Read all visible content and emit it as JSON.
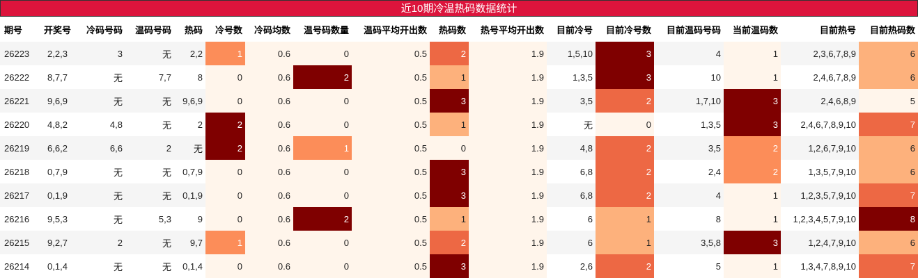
{
  "title": "近10期冷温热码数据统计",
  "table": {
    "columns": [
      "期号",
      "开奖号",
      "冷码号码",
      "温码号码",
      "热码",
      "冷号数",
      "冷码均数",
      "温号码数量",
      "温码平均开出数",
      "热码数",
      "热号平均开出数",
      "目前冷号",
      "目前冷号数",
      "目前温码号码",
      "当前温码数",
      "目前热号",
      "目前热码数"
    ],
    "heat_columns": [
      5,
      6,
      7,
      8,
      9,
      10,
      12,
      14,
      16
    ],
    "colormap": [
      "#fff5eb",
      "#fdc38d",
      "#fc8d59",
      "#e6553a",
      "#7f0000"
    ],
    "row_colors": [
      "#f5f5f5",
      "#ffffff"
    ],
    "rows": [
      [
        26223,
        "2,2,3",
        "3",
        "无",
        "2,2",
        1,
        0.6,
        0,
        0.5,
        2,
        1.9,
        "1,5,10",
        3,
        "4",
        1,
        "2,3,6,7,8,9",
        6
      ],
      [
        26222,
        "8,7,7",
        "无",
        "7,7",
        "8",
        0,
        0.6,
        2,
        0.5,
        1,
        1.9,
        "1,3,5",
        3,
        "10",
        1,
        "2,4,6,7,8,9",
        6
      ],
      [
        26221,
        "9,6,9",
        "无",
        "无",
        "9,6,9",
        0,
        0.6,
        0,
        0.5,
        3,
        1.9,
        "3,5",
        2,
        "1,7,10",
        3,
        "2,4,6,8,9",
        5
      ],
      [
        26220,
        "4,8,2",
        "4,8",
        "无",
        "2",
        2,
        0.6,
        0,
        0.5,
        1,
        1.9,
        "无",
        0,
        "1,3,5",
        3,
        "2,4,6,7,8,9,10",
        7
      ],
      [
        26219,
        "6,6,2",
        "6,6",
        "2",
        "无",
        2,
        0.6,
        1,
        0.5,
        0,
        1.9,
        "4,8",
        2,
        "3,5",
        2,
        "1,2,6,7,9,10",
        6
      ],
      [
        26218,
        "0,7,9",
        "无",
        "无",
        "0,7,9",
        0,
        0.6,
        0,
        0.5,
        3,
        1.9,
        "6,8",
        2,
        "2,4",
        2,
        "1,3,5,7,9,10",
        6
      ],
      [
        26217,
        "0,1,9",
        "无",
        "无",
        "0,1,9",
        0,
        0.6,
        0,
        0.5,
        3,
        1.9,
        "6,8",
        2,
        "4",
        1,
        "1,2,3,5,7,9,10",
        7
      ],
      [
        26216,
        "9,5,3",
        "无",
        "5,3",
        "9",
        0,
        0.6,
        2,
        0.5,
        1,
        1.9,
        "6",
        1,
        "8",
        1,
        "1,2,3,4,5,7,9,10",
        8
      ],
      [
        26215,
        "9,2,7",
        "2",
        "无",
        "9,7",
        1,
        0.6,
        0,
        0.5,
        2,
        1.9,
        "6",
        1,
        "3,5,8",
        3,
        "1,2,4,7,9,10",
        6
      ],
      [
        26214,
        "0,1,4",
        "无",
        "无",
        "0,1,4",
        0,
        0.6,
        0,
        0.5,
        3,
        1.9,
        "2,6",
        2,
        "5",
        1,
        "1,3,4,7,8,9,10",
        7
      ]
    ]
  }
}
